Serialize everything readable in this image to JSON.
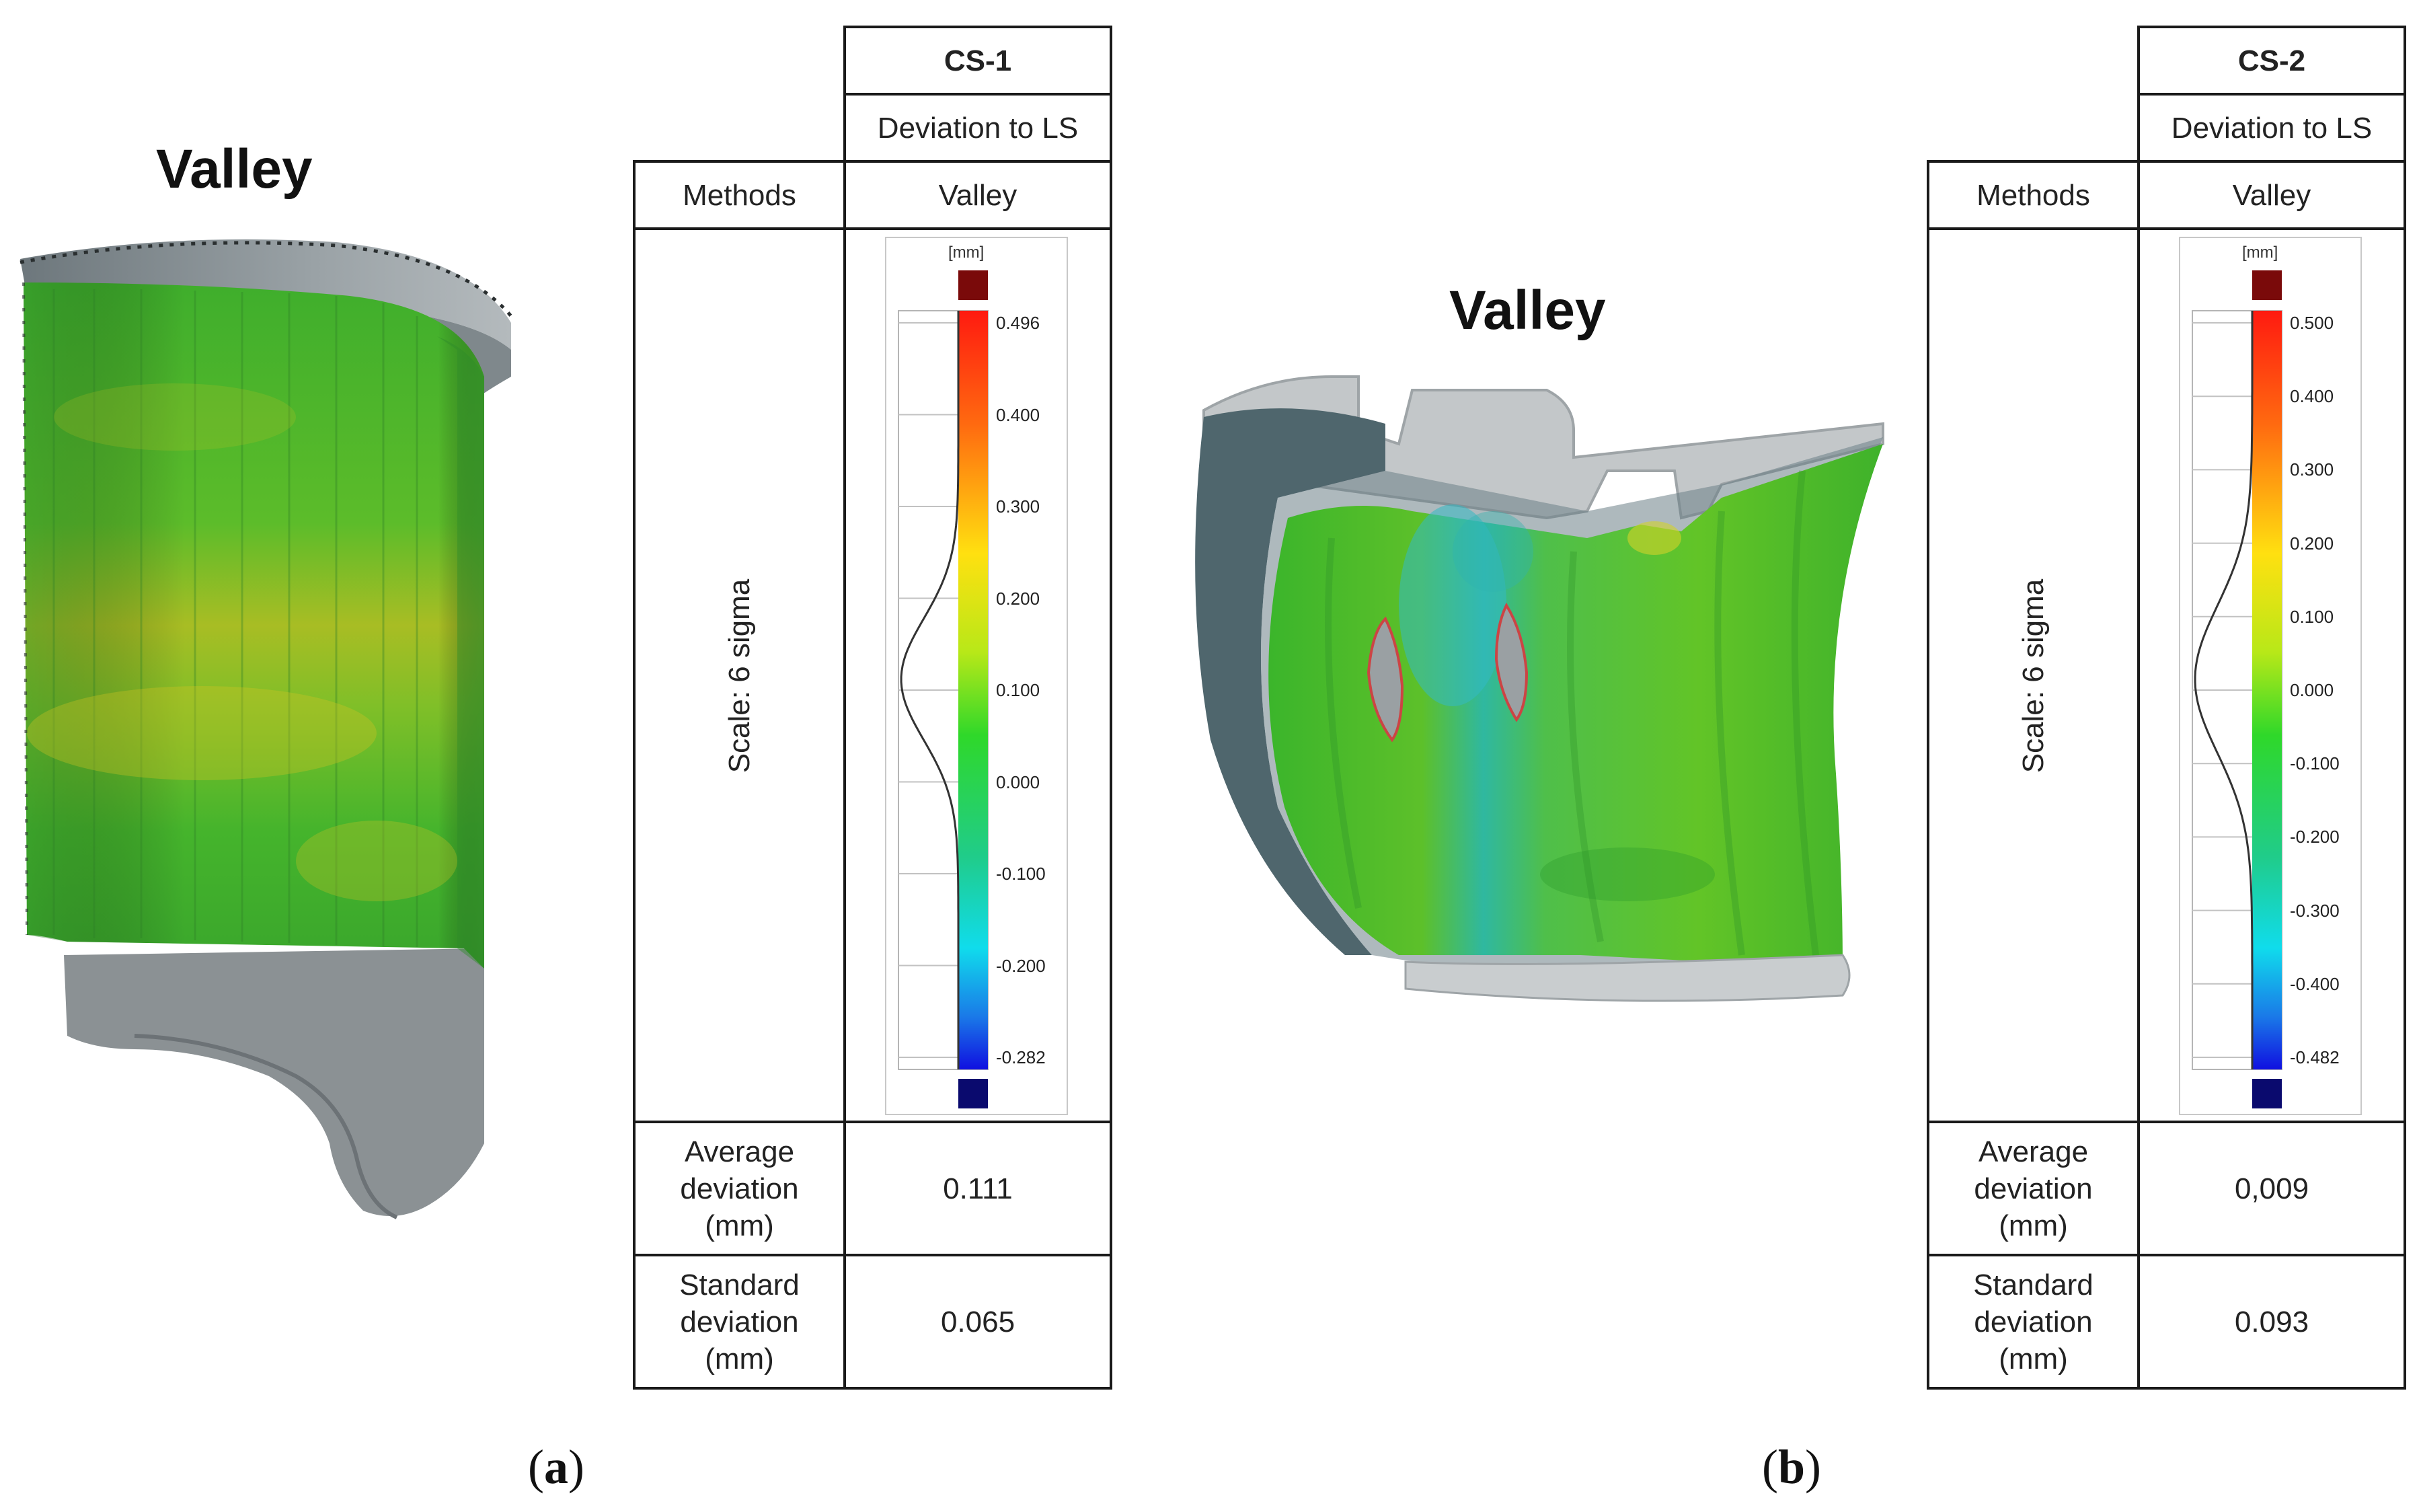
{
  "panels": [
    {
      "object_title": "Valley",
      "caption_letter": "a",
      "table": {
        "header": "CS-1",
        "subheader": "Deviation to LS",
        "methods_label": "Methods",
        "methods_value": "Valley",
        "scale_label": "Scale: 6 sigma",
        "legend": {
          "unit": "[mm]",
          "ticks": [
            "0.496",
            "0.400",
            "0.300",
            "0.200",
            "0.100",
            "0.000",
            "-0.100",
            "-0.200",
            "-0.282"
          ],
          "over_color": "#7a0a0a",
          "under_color": "#0a0a6e"
        },
        "average_label": "Average deviation (mm)",
        "average_value": "0.111",
        "std_label": "Standard deviation (mm)",
        "std_value": "0.065"
      }
    },
    {
      "object_title": "Valley",
      "caption_letter": "b",
      "table": {
        "header": "CS-2",
        "subheader": "Deviation to LS",
        "methods_label": "Methods",
        "methods_value": "Valley",
        "scale_label": "Scale: 6 sigma",
        "legend": {
          "unit": "[mm]",
          "ticks": [
            "0.500",
            "0.400",
            "0.300",
            "0.200",
            "0.100",
            "0.000",
            "-0.100",
            "-0.200",
            "-0.300",
            "-0.400",
            "-0.482"
          ],
          "over_color": "#7a0a0a",
          "under_color": "#0a0a6e"
        },
        "average_label": "Average deviation (mm)",
        "average_value": "0,009",
        "std_label": "Standard deviation (mm)",
        "std_value": "0.093"
      }
    }
  ],
  "colors": {
    "surface_green": "#3fbf2a",
    "surface_yellow": "#b9c81f",
    "surface_gray": "#8f979a",
    "dark_gray": "#4a5c63"
  }
}
